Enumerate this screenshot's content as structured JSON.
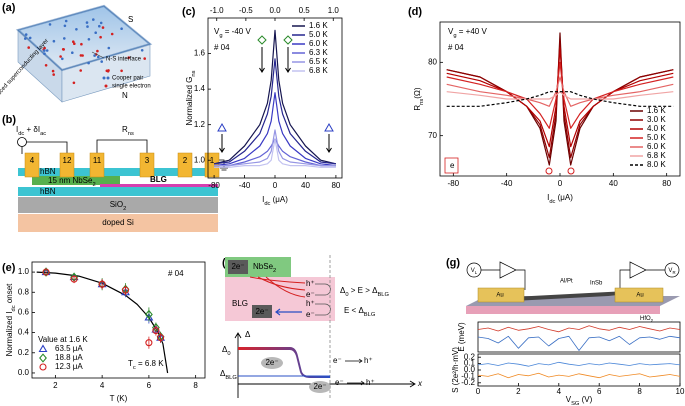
{
  "panels": [
    "(a)",
    "(b)",
    "(c)",
    "(d)",
    "(e)",
    "(f)",
    "(g)"
  ],
  "panel_a": {
    "layer": "induced superconducting layer",
    "S": "S",
    "interface": "N-S interface",
    "N": "N",
    "legend": [
      "Cooper pair",
      "single electron"
    ]
  },
  "panel_b": {
    "current": [
      "I",
      "dc",
      " + δI",
      "ac"
    ],
    "resistance": [
      "R",
      "ns"
    ],
    "electrodes": [
      "4",
      "12",
      "11",
      "3",
      "2",
      "1"
    ],
    "hbn_top": "hBN",
    "nbse2": [
      "15 nm NbSe",
      "2"
    ],
    "blg": "BLG",
    "hbn_bottom": "hBN",
    "sio2": [
      "SiO",
      "2"
    ],
    "si": "doped Si"
  },
  "panel_f": {
    "nbse2": [
      "NbSe",
      "2"
    ],
    "pair_top": "2e⁻",
    "blg": "BLG",
    "hole_1": "h⁺",
    "electron_1": "e⁻",
    "condition_1": [
      "Δ",
      "0",
      " > E > Δ",
      "BLG"
    ],
    "hole_2": "h⁺",
    "electron_2": "e⁻",
    "condition_2": [
      "E < Δ",
      "BLG"
    ],
    "pair_mid": "2e⁻",
    "axis_y": "Δ",
    "axis_x": "x",
    "delta0": [
      "Δ",
      "0"
    ],
    "delta_blg": [
      "Δ",
      "BLG"
    ],
    "pair_low_1": "2e⁻",
    "pair_low_2": "2e⁻",
    "electron_3": "e⁻",
    "hole_3": "h⁺",
    "electron_4": "e⁻",
    "hole_4": "h⁺"
  },
  "panel_g": {
    "pads": [
      "Au",
      "Au"
    ],
    "insb": "InSb",
    "alpt": "Al/Pt",
    "hfo2": [
      "HfO",
      "2"
    ],
    "meters": [
      [
        "V",
        "L"
      ],
      [
        "V",
        "R"
      ]
    ]
  },
  "chart_data": [
    {
      "type": "line",
      "xlabel": [
        "I",
        "dc",
        " (μA)"
      ],
      "ylabel": [
        "Normalized G",
        "ns"
      ],
      "x": [
        -80,
        -60,
        -40,
        -20,
        -10,
        -5,
        0,
        5,
        10,
        20,
        40,
        60,
        80
      ],
      "xlim": [
        -88,
        88
      ],
      "xticks": [
        -80,
        -40,
        0,
        40,
        80
      ],
      "x2lim": [
        -1.15,
        1.15
      ],
      "x2ticks": [
        {
          "value": -1,
          "label": "-1.0"
        },
        -0.5,
        {
          "value": 0,
          "label": "0.0"
        },
        0.5,
        {
          "value": 1,
          "label": "1.0"
        }
      ],
      "ylim": [
        0.9,
        1.8
      ],
      "yticks": [
        {
          "value": 1,
          "label": "1.0"
        },
        1.2,
        1.4,
        1.6
      ],
      "legend": "upper right",
      "annotations": [
        [
          "V",
          "g",
          " = -40 V"
        ],
        "# 04"
      ],
      "series": [
        {
          "name": "1.6 K",
          "color": "#15154f",
          "values": [
            0.98,
            1.0,
            1.08,
            1.2,
            1.32,
            1.45,
            1.73,
            1.45,
            1.32,
            1.2,
            1.08,
            1.0,
            0.98
          ]
        },
        {
          "name": "5.0 K",
          "color": "#26268f",
          "values": [
            0.98,
            0.99,
            1.05,
            1.15,
            1.26,
            1.36,
            1.57,
            1.36,
            1.26,
            1.15,
            1.05,
            0.99,
            0.98
          ]
        },
        {
          "name": "6.0 K",
          "color": "#3a3ac4",
          "values": [
            0.97,
            0.98,
            1.01,
            1.08,
            1.15,
            1.22,
            1.38,
            1.22,
            1.15,
            1.08,
            1.01,
            0.98,
            0.97
          ]
        },
        {
          "name": "6.3 K",
          "color": "#6464d6",
          "values": [
            0.97,
            0.97,
            0.99,
            1.02,
            1.05,
            1.08,
            1.12,
            1.08,
            1.05,
            1.02,
            0.99,
            0.97,
            0.97
          ]
        },
        {
          "name": "6.5 K",
          "color": "#9696e4",
          "values": [
            0.97,
            0.97,
            0.98,
            0.99,
            1.01,
            1.05,
            1.17,
            1.05,
            1.01,
            0.99,
            0.98,
            0.97,
            0.97
          ]
        },
        {
          "name": "6.8 K",
          "color": "#c2c2f0",
          "values": [
            0.96,
            0.96,
            0.97,
            0.97,
            0.98,
            1.0,
            1.12,
            1.0,
            0.98,
            0.97,
            0.97,
            0.96,
            0.96
          ]
        }
      ]
    },
    {
      "type": "line",
      "xlabel": [
        "I",
        "dc",
        " (μA)"
      ],
      "ylabel": [
        "R",
        "ns",
        "(Ω)"
      ],
      "x": [
        -85,
        -60,
        -40,
        -25,
        -15,
        -8,
        -3,
        0,
        3,
        8,
        15,
        25,
        40,
        60,
        85
      ],
      "xlim": [
        -90,
        90
      ],
      "xticks": [
        -80,
        -40,
        0,
        40,
        80
      ],
      "ylim": [
        64.5,
        85.5
      ],
      "yticks": [
        70,
        80
      ],
      "legend": "lower right",
      "annotations": [
        [
          "V",
          "g",
          " = +40 V"
        ],
        "# 04",
        "e"
      ],
      "series": [
        {
          "name": "1.6 K",
          "color": "#6b0000",
          "values": [
            79,
            78,
            76,
            74,
            71,
            66,
            72,
            84,
            72,
            66,
            71,
            74,
            76,
            78,
            79
          ]
        },
        {
          "name": "3.0 K",
          "color": "#8f0000",
          "values": [
            79,
            78,
            76,
            74,
            71.5,
            67,
            73,
            83,
            73,
            67,
            71.5,
            74,
            76,
            78,
            79
          ]
        },
        {
          "name": "4.0 K",
          "color": "#b30000",
          "values": [
            78.5,
            77.5,
            76,
            74,
            72,
            68.5,
            74,
            82,
            74,
            68.5,
            72,
            74,
            76,
            77.5,
            78.5
          ]
        },
        {
          "name": "5.0 K",
          "color": "#d42222",
          "values": [
            78,
            77,
            76,
            75,
            73,
            71,
            75,
            80,
            75,
            71,
            73,
            75,
            76,
            77,
            78
          ]
        },
        {
          "name": "6.0 K",
          "color": "#e46464",
          "values": [
            77,
            76,
            75.5,
            75,
            74.5,
            74,
            76,
            78,
            76,
            74,
            74.5,
            75,
            75.5,
            76,
            77
          ]
        },
        {
          "name": "6.8 K",
          "color": "#f0a4a4",
          "values": [
            76,
            75.5,
            75,
            75,
            75,
            75,
            75.5,
            76,
            75.5,
            75,
            75,
            75,
            75,
            75.5,
            76
          ]
        },
        {
          "name": "8.0 K",
          "color": "#000000",
          "dash": true,
          "values": [
            74,
            74,
            74.5,
            75,
            75.5,
            76,
            76,
            76,
            76,
            76,
            75.5,
            75,
            74.5,
            74,
            74
          ]
        }
      ]
    },
    {
      "type": "scatter",
      "xlabel": "T (K)",
      "ylabel": [
        "Normalized I",
        "dc",
        " onset"
      ],
      "xlim": [
        1,
        8.4
      ],
      "xticks": [
        2,
        4,
        6,
        8
      ],
      "ylim": [
        -0.05,
        1.1
      ],
      "yticks": [
        {
          "value": 0,
          "label": "0.0"
        },
        0.2,
        0.4,
        0.6,
        0.8,
        {
          "value": 1,
          "label": "1.0"
        }
      ],
      "legend": "lower left",
      "legend_title": "Value at 1.6 K",
      "annotations": [
        "# 04",
        [
          "T",
          "c",
          " = 6.8 K"
        ]
      ],
      "series": [
        {
          "color": "#000000",
          "style": "line",
          "x": [
            1.2,
            2,
            3,
            4,
            5,
            5.5,
            6,
            6.4,
            6.6,
            6.8
          ],
          "values": [
            1.0,
            0.99,
            0.96,
            0.89,
            0.77,
            0.68,
            0.55,
            0.4,
            0.29,
            0
          ]
        },
        {
          "name": "63.5 μA",
          "color": "#2b3fc4",
          "marker": "triangle",
          "x": [
            1.6,
            2.8,
            4.0,
            5.0,
            6.0,
            6.3,
            6.5
          ],
          "values": [
            1.0,
            0.95,
            0.88,
            0.8,
            0.55,
            0.43,
            0.35
          ],
          "errors": [
            0.03,
            0.04,
            0.05,
            0.05,
            0.06,
            0.05,
            0.05
          ]
        },
        {
          "name": "18.8 μA",
          "color": "#2a8a2a",
          "marker": "diamond",
          "x": [
            1.6,
            2.8,
            4.0,
            5.0,
            6.0,
            6.3,
            6.5
          ],
          "values": [
            1.0,
            0.95,
            0.88,
            0.83,
            0.58,
            0.45,
            0.36
          ],
          "errors": [
            0.03,
            0.04,
            0.06,
            0.06,
            0.07,
            0.05,
            0.05
          ]
        },
        {
          "name": "12.3 μA",
          "color": "#d42020",
          "marker": "circle",
          "x": [
            1.6,
            2.8,
            4.0,
            5.0,
            6.0,
            6.3,
            6.5
          ],
          "values": [
            1.0,
            0.93,
            0.88,
            0.82,
            0.3,
            0.42,
            0.35
          ],
          "errors": [
            0.02,
            0.04,
            0.05,
            0.05,
            0.06,
            0.05,
            0.05
          ]
        }
      ]
    },
    {
      "type": "line",
      "ylabel": "E (meV)",
      "x": [
        0,
        0.5,
        1,
        1.5,
        2,
        2.5,
        3,
        3.5,
        4,
        4.5,
        5,
        5.5,
        6,
        6.5,
        7,
        7.5,
        8,
        8.5,
        9,
        9.5,
        10
      ],
      "xlim": [
        0,
        10
      ],
      "ylim": [
        0,
        0.4
      ],
      "series": [
        {
          "color": "#d23a2a",
          "values": [
            0.3,
            0.32,
            0.28,
            0.33,
            0.29,
            0.31,
            0.34,
            0.3,
            0.27,
            0.32,
            0.3,
            0.35,
            0.31,
            0.29,
            0.33,
            0.3,
            0.34,
            0.31,
            0.28,
            0.32,
            0.3
          ]
        },
        {
          "color": "#3a6fc4",
          "values": [
            0.2,
            0.18,
            0.12,
            0.21,
            0.05,
            0.19,
            0.2,
            0.08,
            0.18,
            0.21,
            0.02,
            0.19,
            0.2,
            0.15,
            0.21,
            0.1,
            0.19,
            0.2,
            0.17,
            0.21,
            0.19
          ]
        }
      ]
    },
    {
      "type": "line",
      "xlabel": [
        "V",
        "SG",
        " (V)"
      ],
      "ylabel": "S (2e²/h·mV)",
      "x": [
        0,
        0.5,
        1,
        1.5,
        2,
        2.5,
        3,
        3.5,
        4,
        4.5,
        5,
        5.5,
        6,
        6.5,
        7,
        7.5,
        8,
        8.5,
        9,
        9.5,
        10
      ],
      "xlim": [
        0,
        10
      ],
      "xticks": [
        0,
        2,
        4,
        6,
        8,
        10
      ],
      "ylim": [
        -0.25,
        0.25
      ],
      "yticks": [
        -0.2,
        -0.1,
        {
          "value": 0,
          "label": "0.0"
        },
        0.1,
        0.2
      ],
      "series": [
        {
          "color": "#4a86d8",
          "values": [
            0.08,
            0.1,
            0.07,
            0.11,
            0.09,
            0.06,
            0.1,
            0.08,
            0.12,
            0.09,
            0.07,
            0.1,
            0.08,
            0.11,
            0.09,
            0.07,
            0.1,
            0.08,
            0.09,
            0.1,
            0.08
          ]
        },
        {
          "color": "#f08a24",
          "values": [
            -0.08,
            -0.1,
            -0.06,
            -0.12,
            -0.07,
            -0.09,
            -0.05,
            -0.11,
            -0.08,
            -0.1,
            -0.06,
            -0.09,
            -0.12,
            -0.07,
            -0.1,
            -0.08,
            -0.06,
            -0.11,
            -0.09,
            -0.07,
            -0.1
          ]
        }
      ]
    }
  ]
}
